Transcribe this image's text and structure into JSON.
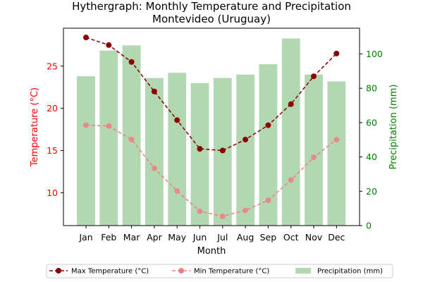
{
  "chart_data": {
    "type": "bar+line",
    "title": "Hythergraph: Monthly Temperature and Precipitation",
    "subtitle": "Montevideo (Uruguay)",
    "xlabel": "Month",
    "ylabel_left": "Temperature (°C)",
    "ylabel_right": "Precipitation (mm)",
    "categories": [
      "Jan",
      "Feb",
      "Mar",
      "Apr",
      "May",
      "Jun",
      "Jul",
      "Aug",
      "Sep",
      "Oct",
      "Nov",
      "Dec"
    ],
    "ylim_left": [
      6.1,
      29.5
    ],
    "ylim_right": [
      0,
      115
    ],
    "yticks_left": [
      10,
      15,
      20,
      25
    ],
    "yticks_right": [
      0,
      20,
      40,
      60,
      80,
      100
    ],
    "series": [
      {
        "name": "Max Temperature (°C)",
        "axis": "left",
        "kind": "line",
        "style": "dashed",
        "marker": "circle",
        "color": "#8b0000",
        "values": [
          28.4,
          27.5,
          25.5,
          22.0,
          18.6,
          15.2,
          15.0,
          16.3,
          18.0,
          20.5,
          23.8,
          26.5
        ]
      },
      {
        "name": "Min Temperature (°C)",
        "axis": "left",
        "kind": "line",
        "style": "dashed",
        "marker": "circle",
        "color": "#f08080",
        "values": [
          18.0,
          17.9,
          16.3,
          12.9,
          10.2,
          7.8,
          7.2,
          7.9,
          9.1,
          11.5,
          14.2,
          16.3
        ]
      },
      {
        "name": "Precipitation (mm)",
        "axis": "right",
        "kind": "bar",
        "color": "#b2d8b2",
        "values": [
          87,
          102,
          105,
          86,
          89,
          83,
          86,
          88,
          94,
          109,
          88,
          84
        ]
      }
    ],
    "legend": {
      "position": "bottom",
      "columns": 3
    },
    "colors": {
      "left_axis": "#ff0000",
      "right_axis": "#008000"
    }
  }
}
